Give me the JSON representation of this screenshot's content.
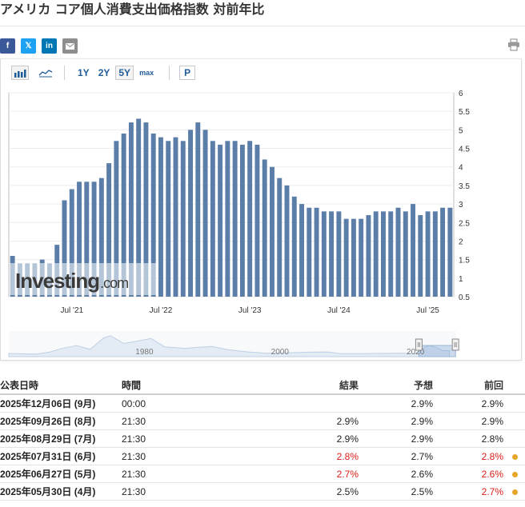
{
  "page": {
    "title": "アメリカ コア個人消費支出価格指数 対前年比"
  },
  "share": {
    "facebook": "f",
    "x": "𝕏",
    "linkedin": "in",
    "mail_icon": "mail-icon",
    "print_icon": "printer-icon"
  },
  "toolbar": {
    "bar_icon": "bar-chart-icon",
    "area_icon": "area-chart-icon",
    "ranges": [
      "1Y",
      "2Y",
      "5Y",
      "max"
    ],
    "active_range": "5Y",
    "p_label": "P"
  },
  "colors": {
    "bar": "#5b7ea8",
    "accent": "#1f5c99",
    "red": "#d91e18",
    "dot": "#e5a629"
  },
  "chart_data": [
    {
      "type": "bar",
      "title": "",
      "xlabel": "",
      "ylabel": "",
      "ylim": [
        0.5,
        6
      ],
      "y_ticks": [
        "0.5",
        "1",
        "1.5",
        "2",
        "2.5",
        "3",
        "3.5",
        "4",
        "4.5",
        "5",
        "5.5",
        "6"
      ],
      "y_axis_side": "right",
      "x_tick_labels": [
        "Jul '21",
        "Jul '22",
        "Jul '23",
        "Jul '24",
        "Jul '25"
      ],
      "x_tick_bar_index": [
        8,
        20,
        32,
        44,
        56
      ],
      "grid": true,
      "series": [
        {
          "values": [
            1.6,
            1.4,
            1.4,
            1.4,
            1.5,
            1.4,
            1.9,
            3.1,
            3.4,
            3.6,
            3.6,
            3.6,
            3.7,
            4.1,
            4.7,
            4.9,
            5.2,
            5.3,
            5.2,
            4.9,
            4.8,
            4.7,
            4.8,
            4.7,
            5.0,
            5.2,
            5.0,
            4.7,
            4.6,
            4.7,
            4.7,
            4.6,
            4.7,
            4.6,
            4.2,
            4.0,
            3.7,
            3.5,
            3.2,
            3.0,
            2.9,
            2.9,
            2.8,
            2.8,
            2.8,
            2.6,
            2.6,
            2.6,
            2.7,
            2.8,
            2.8,
            2.8,
            2.9,
            2.8,
            3.0,
            2.7,
            2.8,
            2.8,
            2.9,
            2.9
          ]
        }
      ],
      "watermark": "Investing.com"
    },
    {
      "type": "area",
      "title": "",
      "x_tick_labels": [
        "1980",
        "2000",
        "2020"
      ],
      "x_range": [
        1960,
        2026
      ],
      "selected_range": [
        2020.5,
        2025.9
      ],
      "x": [
        1960,
        1962,
        1964,
        1966,
        1968,
        1970,
        1972,
        1974,
        1975,
        1977,
        1979,
        1981,
        1983,
        1986,
        1988,
        1990,
        1992,
        1995,
        1998,
        2001,
        2004,
        2007,
        2009,
        2011,
        2014,
        2017,
        2019,
        2020,
        2021,
        2022,
        2023,
        2024,
        2025
      ],
      "values": [
        1.5,
        1.3,
        1.2,
        2.1,
        4.0,
        5.2,
        3.4,
        8.8,
        9.8,
        6.2,
        7.3,
        8.5,
        4.6,
        3.9,
        4.4,
        4.8,
        3.4,
        2.3,
        1.6,
        1.8,
        2.1,
        2.2,
        1.4,
        1.4,
        1.5,
        1.6,
        1.6,
        1.3,
        4.0,
        5.2,
        4.4,
        2.8,
        2.8
      ],
      "ylim": [
        0,
        12
      ]
    }
  ],
  "table": {
    "headers": {
      "date": "公表日時",
      "time": "時間",
      "actual": "結果",
      "forecast": "予想",
      "previous": "前回"
    },
    "rows": [
      {
        "date": "2025年12月06日 (9月)",
        "time": "00:00",
        "actual": "",
        "forecast": "2.9%",
        "previous": "2.9%",
        "actual_color": "black",
        "previous_color": "black",
        "revised": false
      },
      {
        "date": "2025年09月26日 (8月)",
        "time": "21:30",
        "actual": "2.9%",
        "forecast": "2.9%",
        "previous": "2.9%",
        "actual_color": "black",
        "previous_color": "black",
        "revised": false
      },
      {
        "date": "2025年08月29日 (7月)",
        "time": "21:30",
        "actual": "2.9%",
        "forecast": "2.9%",
        "previous": "2.8%",
        "actual_color": "black",
        "previous_color": "black",
        "revised": false
      },
      {
        "date": "2025年07月31日 (6月)",
        "time": "21:30",
        "actual": "2.8%",
        "forecast": "2.7%",
        "previous": "2.8%",
        "actual_color": "red",
        "previous_color": "red",
        "revised": true
      },
      {
        "date": "2025年06月27日 (5月)",
        "time": "21:30",
        "actual": "2.7%",
        "forecast": "2.6%",
        "previous": "2.6%",
        "actual_color": "red",
        "previous_color": "red",
        "revised": true
      },
      {
        "date": "2025年05月30日 (4月)",
        "time": "21:30",
        "actual": "2.5%",
        "forecast": "2.5%",
        "previous": "2.7%",
        "actual_color": "black",
        "previous_color": "red",
        "revised": true
      }
    ]
  }
}
